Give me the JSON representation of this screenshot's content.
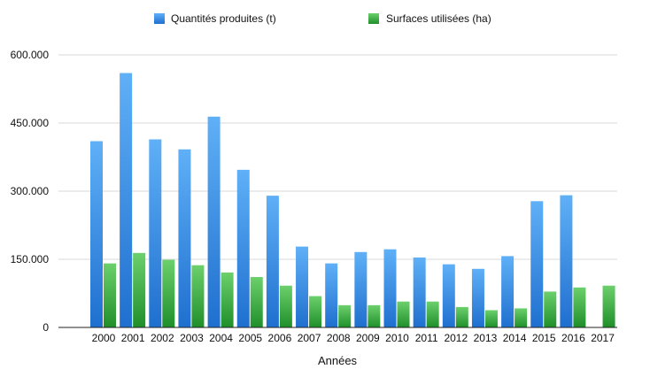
{
  "chart_data": {
    "type": "bar",
    "title": "",
    "xlabel": "Années",
    "ylabel": "",
    "ylim": [
      0,
      600000
    ],
    "yticks": [
      0,
      150000,
      300000,
      450000,
      600000
    ],
    "ytick_labels": [
      "0",
      "150.000",
      "300.000",
      "450.000",
      "600.000"
    ],
    "grid": true,
    "legend_position": "top",
    "categories": [
      "2000",
      "2001",
      "2002",
      "2003",
      "2004",
      "2005",
      "2006",
      "2007",
      "2008",
      "2009",
      "2010",
      "2011",
      "2012",
      "2013",
      "2014",
      "2015",
      "2016",
      "2017"
    ],
    "series": [
      {
        "name": "Quantités produites (t)",
        "color": "#2f86df",
        "values": [
          410000,
          560000,
          414000,
          392000,
          464000,
          347000,
          290000,
          178000,
          141000,
          166000,
          172000,
          154000,
          139000,
          129000,
          157000,
          278000,
          291000,
          null
        ]
      },
      {
        "name": "Surfaces utilisées (ha)",
        "color": "#3aa93a",
        "values": [
          141000,
          164000,
          149000,
          137000,
          121000,
          111000,
          92000,
          69000,
          49000,
          49000,
          57000,
          57000,
          45000,
          38000,
          42000,
          79000,
          88000,
          92000
        ]
      }
    ]
  }
}
